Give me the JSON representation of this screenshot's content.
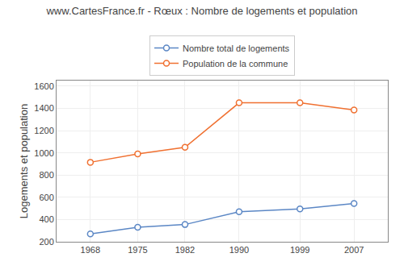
{
  "chart_data": {
    "type": "line",
    "title": "www.CartesFrance.fr - Rœux : Nombre de logements et population",
    "ylabel": "Logements et population",
    "x": [
      1968,
      1975,
      1982,
      1990,
      1999,
      2007
    ],
    "series": [
      {
        "name": "Nombre total de logements",
        "color": "#5b87c5",
        "values": [
          270,
          330,
          355,
          470,
          495,
          545
        ]
      },
      {
        "name": "Population de la commune",
        "color": "#f07030",
        "values": [
          915,
          990,
          1050,
          1450,
          1450,
          1385
        ]
      }
    ],
    "xlim": [
      1963,
      2012
    ],
    "xticks": [
      1968,
      1975,
      1982,
      1990,
      1999,
      2007
    ],
    "ylim": [
      200,
      1650
    ],
    "yticks": [
      200,
      400,
      600,
      800,
      1000,
      1200,
      1400,
      1600
    ],
    "grid": true,
    "legend": "top",
    "marker": "circle"
  }
}
